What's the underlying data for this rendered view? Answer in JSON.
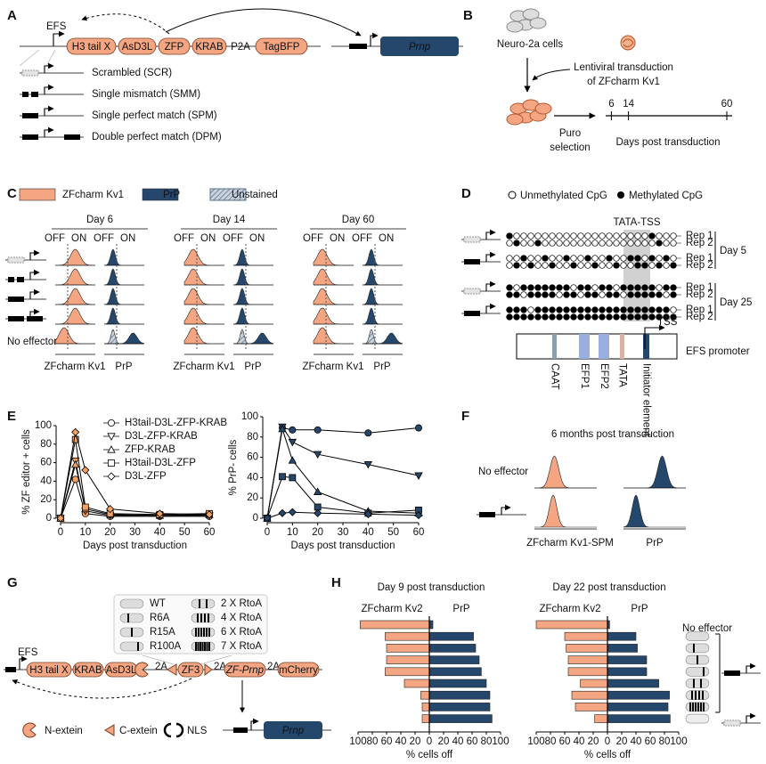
{
  "panel_a": {
    "letter": "A",
    "promoter": "EFS",
    "domains": [
      "H3 tail X",
      "AsD3L",
      "ZFP",
      "KRAB"
    ],
    "linker": "P2A",
    "tag": "TagBFP",
    "target": "Prnp",
    "guides": [
      "Scrambled (SCR)",
      "Single mismatch (SMM)",
      "Single perfect match (SPM)",
      "Double perfect match (DPM)"
    ]
  },
  "panel_b": {
    "letter": "B",
    "cells": "Neuro-2a cells",
    "transduction": [
      "Lentiviral transduction",
      "of ZFcharm Kv1"
    ],
    "selection": [
      "Puro",
      "selection"
    ],
    "timeline": {
      "ticks": [
        6,
        14,
        60
      ],
      "label": "Days post transduction"
    }
  },
  "panel_c": {
    "letter": "C",
    "legend": [
      {
        "name": "ZFcharm Kv1",
        "color": "#f4a582"
      },
      {
        "name": "PrP",
        "color": "#24476b"
      },
      {
        "name": "Unstained",
        "color": "#8fa3ba"
      }
    ],
    "days": [
      {
        "title": "Day 6",
        "columns": [
          {
            "gates": [
              "OFF",
              "ON"
            ],
            "x_label": "ZFcharm Kv1"
          },
          {
            "gates": [
              "OFF",
              "ON"
            ],
            "x_label": "PrP"
          }
        ]
      },
      {
        "title": "Day 14",
        "columns": [
          {
            "gates": [
              "OFF",
              "ON"
            ],
            "x_label": "ZFcharm Kv1"
          },
          {
            "gates": [
              "OFF",
              "ON"
            ],
            "x_label": "PrP"
          }
        ]
      },
      {
        "title": "Day 60",
        "columns": [
          {
            "gates": [
              "OFF",
              "ON"
            ],
            "x_label": "ZFcharm Kv1"
          },
          {
            "gates": [
              "OFF",
              "ON"
            ],
            "x_label": "PrP"
          }
        ]
      }
    ],
    "no_effector": "No effector"
  },
  "panel_d": {
    "letter": "D",
    "legend": [
      "Unmethylated CpG",
      "Methylated CpG"
    ],
    "region": "TATA-TSS",
    "groups": [
      {
        "label": "Day 5",
        "reps": [
          "Rep 1",
          "Rep 2",
          "Rep 1",
          "Rep 2"
        ]
      },
      {
        "label": "Day 25",
        "reps": [
          "Rep 1",
          "Rep 2",
          "Rep 1",
          "Rep 2"
        ]
      }
    ],
    "tss": "TSS",
    "promoter": "EFS promoter",
    "elements": [
      "CAAT",
      "EFP1",
      "EFP2",
      "TATA",
      "Initiator element"
    ]
  },
  "panel_e": {
    "letter": "E",
    "charts": [
      {
        "type": "line",
        "y_label": "% ZF editor + cells",
        "x_label": "Days post transduction",
        "color": "#f4a261",
        "x": [
          0,
          6,
          10,
          20,
          40,
          60
        ],
        "xlim": [
          0,
          60
        ],
        "xticks": [
          0,
          10,
          20,
          30,
          40,
          50,
          60
        ],
        "ylim": [
          0,
          100
        ],
        "yticks": [
          0,
          20,
          40,
          60,
          80,
          100
        ],
        "series": [
          {
            "name": "H3tail-D3L-ZFP-KRAB",
            "marker": "circle",
            "values": [
              0,
              42,
              5,
              2,
              2,
              2
            ]
          },
          {
            "name": "D3L-ZFP-KRAB",
            "marker": "triangle-down",
            "values": [
              0,
              62,
              8,
              3,
              3,
              3
            ]
          },
          {
            "name": "ZFP-KRAB",
            "marker": "triangle-up",
            "values": [
              0,
              58,
              10,
              4,
              3,
              4
            ]
          },
          {
            "name": "H3tail-D3L-ZFP",
            "marker": "square",
            "values": [
              0,
              85,
              12,
              5,
              4,
              5
            ]
          },
          {
            "name": "D3L-ZFP",
            "marker": "diamond",
            "values": [
              0,
              93,
              52,
              10,
              5,
              4
            ]
          }
        ]
      },
      {
        "type": "line",
        "y_label": "% PrP- cells",
        "x_label": "Days post transduction",
        "color": "#24476b",
        "x": [
          0,
          6,
          10,
          20,
          40,
          60
        ],
        "xlim": [
          0,
          60
        ],
        "xticks": [
          0,
          10,
          20,
          30,
          40,
          50,
          60
        ],
        "ylim": [
          0,
          100
        ],
        "yticks": [
          0,
          20,
          40,
          60,
          80,
          100
        ],
        "series": [
          {
            "marker": "circle",
            "values": [
              0,
              89,
              87,
              87,
              84,
              89
            ]
          },
          {
            "marker": "triangle-down",
            "values": [
              0,
              90,
              75,
              63,
              53,
              42
            ]
          },
          {
            "marker": "triangle-up",
            "values": [
              0,
              88,
              57,
              26,
              7,
              5
            ]
          },
          {
            "marker": "square",
            "values": [
              0,
              41,
              40,
              11,
              5,
              8
            ]
          },
          {
            "marker": "diamond",
            "values": [
              0,
              5,
              6,
              5,
              4,
              3
            ]
          }
        ]
      }
    ]
  },
  "panel_f": {
    "letter": "F",
    "title": "6 months post transduction",
    "no_effector": "No effector",
    "x_labels": [
      "ZFcharm Kv1-SPM",
      "PrP"
    ]
  },
  "panel_g": {
    "letter": "G",
    "variants": [
      "WT",
      "R6A",
      "R15A",
      "R100A",
      "2 X RtoA",
      "4 X RtoA",
      "6 X RtoA",
      "7 X RtoA"
    ],
    "promoter": "EFS",
    "construct": [
      "H3 tail X",
      "KRAB",
      "AsD3L",
      "2A",
      "ZF3",
      "2A",
      "ZF-Prnp",
      "2A",
      "mCherry"
    ],
    "target": "Prnp",
    "legend": [
      "N-extein",
      "C-extein",
      "NLS"
    ]
  },
  "panel_h": {
    "letter": "H",
    "charts": [
      {
        "type": "bar",
        "title": "Day 9 post transduction",
        "left_label": "ZFcharm Kv2",
        "right_label": "PrP",
        "x_label": "% cells off",
        "xlim": [
          0,
          100
        ],
        "left_ticks": [
          100,
          80,
          60,
          40,
          20
        ],
        "right_ticks": [
          0,
          20,
          40,
          60,
          80,
          100
        ],
        "left_color": "#f4a582",
        "right_color": "#24476b",
        "left_values": [
          97,
          62,
          60,
          60,
          62,
          35,
          12,
          10,
          10
        ],
        "right_values": [
          5,
          62,
          65,
          70,
          73,
          80,
          85,
          85,
          88
        ]
      },
      {
        "type": "bar",
        "title": "Day 22 post transduction",
        "left_label": "ZFcharm Kv2",
        "right_label": "PrP",
        "x_label": "% cells off",
        "xlim": [
          0,
          100
        ],
        "left_ticks": [
          100,
          80,
          60,
          40,
          20
        ],
        "right_ticks": [
          0,
          20,
          40,
          60,
          80,
          100
        ],
        "left_color": "#f4a582",
        "right_color": "#24476b",
        "left_values": [
          100,
          60,
          58,
          55,
          55,
          38,
          50,
          45,
          18
        ],
        "right_values": [
          3,
          40,
          42,
          55,
          55,
          72,
          87,
          85,
          88
        ]
      }
    ],
    "no_effector": "No effector"
  }
}
